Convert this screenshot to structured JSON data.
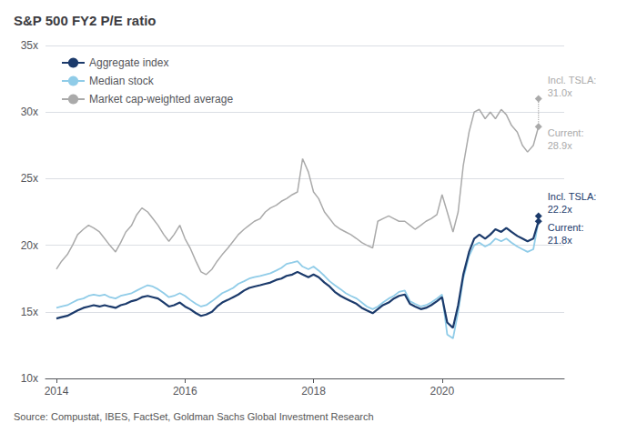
{
  "chart_data": {
    "type": "line",
    "title": "S&P 500 FY2 P/E ratio",
    "source": "Source: Compustat, IBES, FactSet, Goldman Sachs Global Investment Research",
    "xlim": [
      2013.83,
      2021.9
    ],
    "xticks": [
      2014,
      2016,
      2018,
      2020
    ],
    "ylim": [
      10,
      35
    ],
    "yticks": [
      {
        "value": 10,
        "label": "10x"
      },
      {
        "value": 15,
        "label": "15x"
      },
      {
        "value": 20,
        "label": "20x"
      },
      {
        "value": 25,
        "label": "25x"
      },
      {
        "value": 30,
        "label": "30x"
      },
      {
        "value": 35,
        "label": "35x"
      }
    ],
    "grid": true,
    "legend": "upper left",
    "x": [
      2014.0,
      2014.08,
      2014.17,
      2014.25,
      2014.33,
      2014.42,
      2014.5,
      2014.58,
      2014.67,
      2014.75,
      2014.83,
      2014.92,
      2015.0,
      2015.08,
      2015.17,
      2015.25,
      2015.33,
      2015.42,
      2015.5,
      2015.58,
      2015.67,
      2015.75,
      2015.83,
      2015.92,
      2016.0,
      2016.08,
      2016.17,
      2016.25,
      2016.33,
      2016.42,
      2016.5,
      2016.58,
      2016.67,
      2016.75,
      2016.83,
      2016.92,
      2017.0,
      2017.08,
      2017.17,
      2017.25,
      2017.33,
      2017.42,
      2017.5,
      2017.58,
      2017.67,
      2017.75,
      2017.83,
      2017.92,
      2018.0,
      2018.08,
      2018.17,
      2018.25,
      2018.33,
      2018.42,
      2018.5,
      2018.58,
      2018.67,
      2018.75,
      2018.83,
      2018.92,
      2019.0,
      2019.08,
      2019.17,
      2019.25,
      2019.33,
      2019.42,
      2019.5,
      2019.58,
      2019.67,
      2019.75,
      2019.83,
      2019.92,
      2020.0,
      2020.08,
      2020.17,
      2020.25,
      2020.33,
      2020.42,
      2020.5,
      2020.58,
      2020.67,
      2020.75,
      2020.83,
      2020.92,
      2021.0,
      2021.08,
      2021.17,
      2021.25,
      2021.33,
      2021.42,
      2021.5
    ],
    "series": [
      {
        "name": "Aggregate index",
        "color": "#1b3a6b",
        "values": [
          14.5,
          14.6,
          14.7,
          14.9,
          15.1,
          15.3,
          15.4,
          15.5,
          15.4,
          15.5,
          15.4,
          15.3,
          15.5,
          15.6,
          15.8,
          15.9,
          16.1,
          16.2,
          16.1,
          16.0,
          15.7,
          15.4,
          15.5,
          15.7,
          15.4,
          15.2,
          14.9,
          14.7,
          14.8,
          15.0,
          15.4,
          15.7,
          15.9,
          16.1,
          16.3,
          16.6,
          16.8,
          16.9,
          17.0,
          17.1,
          17.2,
          17.4,
          17.5,
          17.7,
          17.8,
          18.0,
          17.8,
          17.6,
          17.8,
          17.6,
          17.2,
          16.9,
          16.5,
          16.2,
          16.0,
          15.8,
          15.6,
          15.3,
          15.1,
          14.9,
          15.2,
          15.5,
          15.7,
          16.0,
          16.2,
          16.3,
          15.6,
          15.4,
          15.2,
          15.3,
          15.5,
          15.8,
          16.1,
          14.2,
          13.8,
          15.5,
          17.8,
          19.5,
          20.5,
          20.8,
          20.5,
          20.8,
          21.2,
          21.0,
          21.3,
          21.0,
          20.7,
          20.5,
          20.3,
          20.5,
          21.8
        ]
      },
      {
        "name": "Median stock",
        "color": "#90cce8",
        "values": [
          15.3,
          15.4,
          15.5,
          15.7,
          15.9,
          16.0,
          16.2,
          16.3,
          16.2,
          16.3,
          16.1,
          16.0,
          16.2,
          16.3,
          16.4,
          16.6,
          16.8,
          17.0,
          16.9,
          16.7,
          16.4,
          16.1,
          16.2,
          16.4,
          16.2,
          15.9,
          15.6,
          15.4,
          15.5,
          15.8,
          16.1,
          16.4,
          16.6,
          16.8,
          17.1,
          17.3,
          17.5,
          17.6,
          17.7,
          17.8,
          17.9,
          18.1,
          18.3,
          18.6,
          18.7,
          18.8,
          18.4,
          18.2,
          18.4,
          18.1,
          17.7,
          17.3,
          17.0,
          16.7,
          16.4,
          16.2,
          16.0,
          15.7,
          15.4,
          15.2,
          15.4,
          15.7,
          16.0,
          16.2,
          16.5,
          16.6,
          15.8,
          15.6,
          15.4,
          15.5,
          15.7,
          16.0,
          16.3,
          13.3,
          13.0,
          15.0,
          17.5,
          19.2,
          20.0,
          20.2,
          19.9,
          20.1,
          20.5,
          20.3,
          20.5,
          20.2,
          19.9,
          19.7,
          19.5,
          19.7,
          21.8
        ]
      },
      {
        "name": "Market cap-weighted average",
        "color": "#aaaaaa",
        "values": [
          18.2,
          18.8,
          19.3,
          20.0,
          20.8,
          21.2,
          21.5,
          21.3,
          21.0,
          20.5,
          20.0,
          19.5,
          20.2,
          21.0,
          21.5,
          22.3,
          22.8,
          22.5,
          22.0,
          21.5,
          20.8,
          20.3,
          20.8,
          21.5,
          20.5,
          19.8,
          18.8,
          18.0,
          17.8,
          18.2,
          18.8,
          19.3,
          19.8,
          20.3,
          20.8,
          21.2,
          21.5,
          21.8,
          22.0,
          22.5,
          22.8,
          23.0,
          23.3,
          23.5,
          23.8,
          24.0,
          26.5,
          25.5,
          24.0,
          23.5,
          22.5,
          22.0,
          21.5,
          21.2,
          21.0,
          20.8,
          20.5,
          20.2,
          20.0,
          19.8,
          21.8,
          22.0,
          22.2,
          22.0,
          21.8,
          21.8,
          21.5,
          21.2,
          21.5,
          21.8,
          22.0,
          22.3,
          23.8,
          22.5,
          21.0,
          22.5,
          26.0,
          28.5,
          30.0,
          30.2,
          29.5,
          30.0,
          29.5,
          30.2,
          29.8,
          29.0,
          28.5,
          27.5,
          27.0,
          27.5,
          28.9
        ]
      }
    ],
    "end_markers": [
      {
        "x": 2021.5,
        "values": [
          28.9,
          31.0
        ],
        "labels": [
          "Current:\n28.9x",
          "Incl. TSLA:\n31.0x"
        ],
        "color": "#aaaaaa",
        "marker": "diamond",
        "line_style": "dotted"
      },
      {
        "x": 2021.5,
        "values": [
          21.8,
          22.2
        ],
        "labels": [
          "Current:\n21.8x",
          "Incl. TSLA:\n22.2x"
        ],
        "color": "#1b3a6b",
        "marker": "diamond",
        "line_style": "dotted"
      }
    ]
  }
}
